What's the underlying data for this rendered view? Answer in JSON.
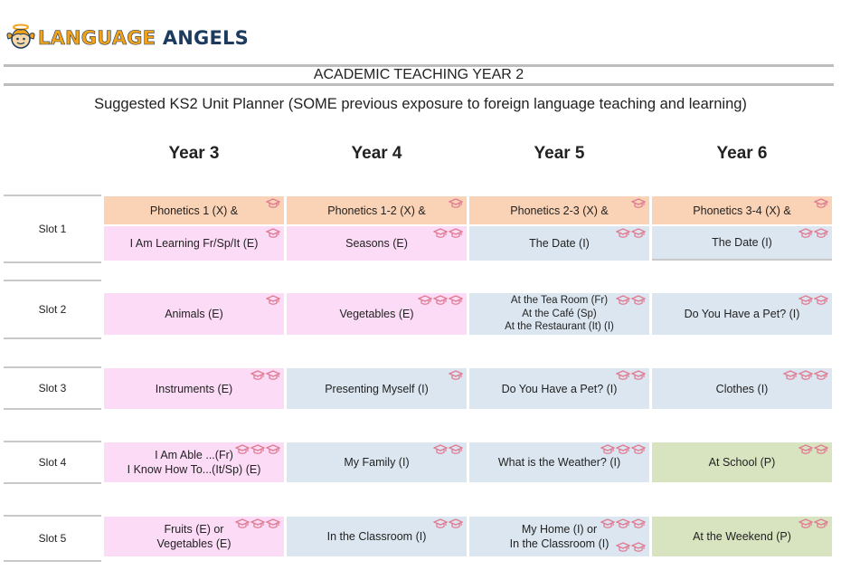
{
  "header": {
    "brand_word1": "LANGUAGE",
    "brand_word2": "ANGELS",
    "title": "ACADEMIC TEACHING YEAR 2",
    "subtitle": "Suggested KS2 Unit Planner (SOME previous exposure to foreign language teaching and learning)"
  },
  "years": [
    "Year 3",
    "Year 4",
    "Year 5",
    "Year 6"
  ],
  "slots": [
    "Slot 1",
    "Slot 2",
    "Slot 3",
    "Slot 4",
    "Slot 5"
  ],
  "colors": {
    "early_pink": "#fbdbf5",
    "intermediate_blue": "#dce6f0",
    "progressive_green": "#d8e4bf",
    "phonetics_orange": "#fad3b6",
    "cap_icon": "#e07a92"
  },
  "grid": {
    "phonetics": [
      {
        "text": "Phonetics 1 (X) &",
        "caps": 1
      },
      {
        "text": "Phonetics 1-2 (X) &",
        "caps": 1
      },
      {
        "text": "Phonetics 2-3 (X) &",
        "caps": 1
      },
      {
        "text": "Phonetics 3-4 (X) &",
        "caps": 1
      }
    ],
    "slot1": [
      {
        "lines": [
          "I Am Learning Fr/Sp/It (E)"
        ],
        "caps": 1,
        "level": "E"
      },
      {
        "lines": [
          "Seasons (E)"
        ],
        "caps": 2,
        "level": "E"
      },
      {
        "lines": [
          "The Date (I)"
        ],
        "caps": 2,
        "level": "I"
      },
      {
        "lines": [
          "The Date (I)"
        ],
        "caps": 2,
        "level": "I"
      }
    ],
    "slot2": [
      {
        "lines": [
          "Animals (E)"
        ],
        "caps": 1,
        "level": "E"
      },
      {
        "lines": [
          "Vegetables (E)"
        ],
        "caps": 3,
        "level": "E"
      },
      {
        "lines": [
          "At the Tea Room (Fr)",
          "At the Café (Sp)",
          "At the Restaurant (It) (I)"
        ],
        "caps": 2,
        "level": "I"
      },
      {
        "lines": [
          "Do You Have a Pet? (I)"
        ],
        "caps": 2,
        "level": "I"
      }
    ],
    "slot3": [
      {
        "lines": [
          "Instruments (E)"
        ],
        "caps": 2,
        "level": "E"
      },
      {
        "lines": [
          "Presenting Myself (I)"
        ],
        "caps": 1,
        "level": "I"
      },
      {
        "lines": [
          "Do You Have a Pet? (I)"
        ],
        "caps": 2,
        "level": "I"
      },
      {
        "lines": [
          "Clothes (I)"
        ],
        "caps": 3,
        "level": "I"
      }
    ],
    "slot4": [
      {
        "lines": [
          "I Am Able ...(Fr)",
          "I Know How To...(It/Sp) (E)"
        ],
        "caps": 3,
        "level": "E"
      },
      {
        "lines": [
          "My Family (I)"
        ],
        "caps": 2,
        "level": "I"
      },
      {
        "lines": [
          "What is the Weather? (I)"
        ],
        "caps": 3,
        "level": "I"
      },
      {
        "lines": [
          "At School (P)"
        ],
        "caps": 2,
        "level": "P"
      }
    ],
    "slot5": [
      {
        "lines": [
          "Fruits (E) or",
          "Vegetables (E)"
        ],
        "caps": 3,
        "level": "E"
      },
      {
        "lines": [
          "In the Classroom (I)"
        ],
        "caps": 2,
        "level": "I"
      },
      {
        "lines": [
          "My Home (I) or",
          "In the Classroom (I)"
        ],
        "caps": 3,
        "caps_line2": 2,
        "level": "I"
      },
      {
        "lines": [
          "At the Weekend (P)"
        ],
        "caps": 2,
        "level": "P"
      }
    ]
  }
}
